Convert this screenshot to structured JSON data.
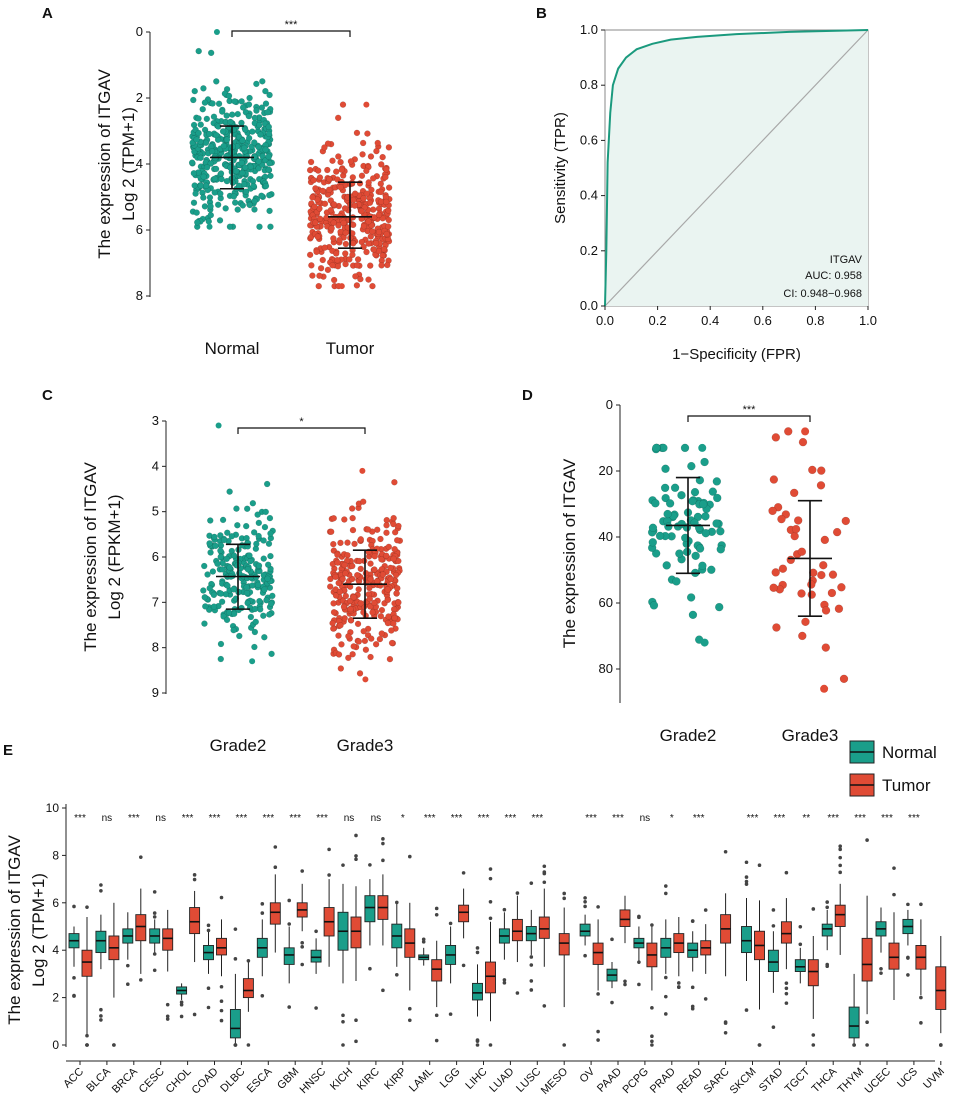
{
  "colors": {
    "normal": "#1a9e8a",
    "tumor": "#e04b35",
    "roc_line": "#1b9a7e",
    "roc_fill": "#eaf4f1",
    "diagonal": "#a8a8a8",
    "axis": "#222222"
  },
  "chart_data": [
    {
      "panel": "A",
      "type": "scatter",
      "ylabel": "The  expression of  ITGAV",
      "ylabel2": "Log 2 (TPM+1)",
      "categories": [
        "Normal",
        "Tumor"
      ],
      "ylim": [
        0,
        8
      ],
      "yticks": [
        "0",
        "2",
        "4",
        "6",
        "8"
      ],
      "significance": "***",
      "series": [
        {
          "name": "Normal",
          "mean": 3.8,
          "sd_low": 2.85,
          "sd_high": 4.75,
          "min": 0.0,
          "max": 5.9,
          "n": 420
        },
        {
          "name": "Tumor",
          "mean": 5.6,
          "sd_low": 4.55,
          "sd_high": 6.55,
          "min": 2.2,
          "max": 7.7,
          "n": 360
        }
      ]
    },
    {
      "panel": "B",
      "type": "line",
      "xlabel": "1−Specificity (FPR)",
      "ylabel": "Sensitivity (TPR)",
      "xlim": [
        0,
        1
      ],
      "ylim": [
        0,
        1
      ],
      "xticks": [
        "0.0",
        "0.2",
        "0.4",
        "0.6",
        "0.8",
        "1.0"
      ],
      "yticks": [
        "0.0",
        "0.2",
        "0.4",
        "0.6",
        "0.8",
        "1.0"
      ],
      "roc_fpr": [
        0,
        0.005,
        0.01,
        0.02,
        0.03,
        0.05,
        0.08,
        0.12,
        0.18,
        0.25,
        0.35,
        0.5,
        0.7,
        1.0
      ],
      "roc_tpr": [
        0,
        0.2,
        0.52,
        0.7,
        0.8,
        0.86,
        0.9,
        0.93,
        0.95,
        0.965,
        0.975,
        0.985,
        0.993,
        1.0
      ],
      "legend": {
        "gene": "ITGAV",
        "auc": "AUC: 0.958",
        "ci": "CI: 0.948−0.968"
      }
    },
    {
      "panel": "C",
      "type": "scatter",
      "ylabel": "The  expression of  ITGAV",
      "ylabel2": "Log 2 (FPKM+1)",
      "categories": [
        "Grade2",
        "Grade3"
      ],
      "ylim": [
        3,
        9
      ],
      "yticks": [
        "3",
        "4",
        "5",
        "6",
        "7",
        "8",
        "9"
      ],
      "significance": "*",
      "series": [
        {
          "name": "Grade2",
          "mean": 6.43,
          "sd_low": 5.72,
          "sd_high": 7.15,
          "min": 3.1,
          "max": 8.3,
          "n": 230
        },
        {
          "name": "Grade3",
          "mean": 6.6,
          "sd_low": 5.85,
          "sd_high": 7.35,
          "min": 4.1,
          "max": 8.7,
          "n": 300
        }
      ]
    },
    {
      "panel": "D",
      "type": "scatter",
      "ylabel": "The  expression of  ITGAV",
      "categories": [
        "Grade2",
        "Grade3"
      ],
      "ylim": [
        0,
        90
      ],
      "yticks": [
        "0",
        "20",
        "40",
        "60",
        "80"
      ],
      "significance": "***",
      "series": [
        {
          "name": "Grade2",
          "mean": 36.5,
          "sd_low": 22,
          "sd_high": 51,
          "min": 13,
          "max": 72,
          "n": 85
        },
        {
          "name": "Grade3",
          "mean": 46.5,
          "sd_low": 29,
          "sd_high": 64,
          "min": 8,
          "max": 86,
          "n": 45
        }
      ]
    },
    {
      "panel": "E",
      "type": "box",
      "ylabel": "The expression of ITGAV",
      "ylabel2": "Log 2 (TPM+1)",
      "ylim": [
        0,
        10
      ],
      "yticks": [
        "0",
        "2",
        "4",
        "6",
        "8",
        "10"
      ],
      "legend": [
        "Normal",
        "Tumor"
      ],
      "categories": [
        "ACC",
        "BLCA",
        "BRCA",
        "CESC",
        "CHOL",
        "COAD",
        "DLBC",
        "ESCA",
        "GBM",
        "HNSC",
        "KICH",
        "KIRC",
        "KIRP",
        "LAML",
        "LGG",
        "LIHC",
        "LUAD",
        "LUSC",
        "MESO",
        "OV",
        "PAAD",
        "PCPG",
        "PRAD",
        "READ",
        "SARC",
        "SKCM",
        "STAD",
        "TGCT",
        "THCA",
        "THYM",
        "UCEC",
        "UCS",
        "UVM"
      ],
      "significance": [
        "***",
        "ns",
        "***",
        "ns",
        "***",
        "***",
        "***",
        "***",
        "***",
        "***",
        "ns",
        "ns",
        "*",
        "***",
        "***",
        "***",
        "***",
        "***",
        "",
        "***",
        "***",
        "ns",
        "*",
        "***",
        "",
        "***",
        "***",
        "**",
        "***",
        "***",
        "***",
        "***",
        ""
      ],
      "normal_box": [
        [
          4.1,
          4.4,
          4.7,
          3.3,
          5.0
        ],
        [
          3.9,
          4.4,
          4.8,
          3.2,
          5.5
        ],
        [
          4.3,
          4.6,
          4.9,
          3.6,
          5.6
        ],
        [
          4.3,
          4.6,
          4.9,
          3.9,
          5.3
        ],
        [
          2.15,
          2.3,
          2.45,
          1.9,
          2.6
        ],
        [
          3.6,
          3.9,
          4.2,
          3.0,
          4.8
        ],
        [
          0.3,
          0.7,
          1.5,
          0.0,
          3.0
        ],
        [
          3.7,
          4.1,
          4.5,
          2.9,
          5.3
        ],
        [
          3.4,
          3.8,
          4.1,
          2.6,
          5.0
        ],
        [
          3.5,
          3.7,
          4.0,
          3.0,
          4.5
        ],
        [
          4.0,
          4.8,
          5.6,
          2.6,
          6.8
        ],
        [
          5.2,
          5.8,
          6.3,
          4.2,
          7.0
        ],
        [
          4.1,
          4.6,
          5.1,
          3.3,
          6.0
        ],
        [
          3.6,
          3.7,
          3.8,
          3.35,
          4.1
        ],
        [
          3.4,
          3.8,
          4.2,
          2.6,
          5.0
        ],
        [
          1.9,
          2.2,
          2.6,
          1.2,
          3.4
        ],
        [
          4.3,
          4.6,
          4.9,
          3.6,
          5.6
        ],
        [
          4.4,
          4.7,
          5.0,
          3.8,
          5.7
        ],
        null,
        [
          4.6,
          4.8,
          5.1,
          4.2,
          5.5
        ],
        [
          2.7,
          2.95,
          3.2,
          2.4,
          3.5
        ],
        [
          4.1,
          4.3,
          4.5,
          3.5,
          5.0
        ],
        [
          3.7,
          4.1,
          4.5,
          3.0,
          5.3
        ],
        [
          3.7,
          4.0,
          4.3,
          3.1,
          4.8
        ],
        null,
        [
          3.9,
          4.4,
          5.0,
          2.7,
          6.2
        ],
        [
          3.1,
          3.5,
          4.0,
          2.2,
          4.8
        ],
        [
          3.1,
          3.3,
          3.6,
          2.6,
          4.1
        ],
        [
          4.6,
          4.9,
          5.1,
          4.0,
          5.7
        ],
        [
          0.3,
          0.8,
          1.6,
          0.0,
          3.0
        ],
        [
          4.6,
          4.9,
          5.2,
          3.9,
          5.8
        ],
        [
          4.7,
          5.0,
          5.3,
          4.2,
          5.7
        ],
        null
      ],
      "tumor_box": [
        [
          2.9,
          3.5,
          4.0,
          0.4,
          5.4
        ],
        [
          3.6,
          4.1,
          4.6,
          2.0,
          6.0
        ],
        [
          4.4,
          5.0,
          5.5,
          3.0,
          6.6
        ],
        [
          4.0,
          4.5,
          4.9,
          3.1,
          5.7
        ],
        [
          4.7,
          5.2,
          5.8,
          3.5,
          6.5
        ],
        [
          3.8,
          4.1,
          4.5,
          2.9,
          5.3
        ],
        [
          2.0,
          2.3,
          2.8,
          1.4,
          3.5
        ],
        [
          5.1,
          5.6,
          6.0,
          3.9,
          7.2
        ],
        [
          5.4,
          5.7,
          6.0,
          4.8,
          6.8
        ],
        [
          4.6,
          5.2,
          5.8,
          3.3,
          7.0
        ],
        [
          4.1,
          4.8,
          5.4,
          2.7,
          6.7
        ],
        [
          5.3,
          5.8,
          6.3,
          4.2,
          7.2
        ],
        [
          3.7,
          4.3,
          4.9,
          2.3,
          6.0
        ],
        [
          2.7,
          3.2,
          3.6,
          1.6,
          4.4
        ],
        [
          5.2,
          5.6,
          5.9,
          4.5,
          6.6
        ],
        [
          2.2,
          2.9,
          3.5,
          1.0,
          5.2
        ],
        [
          4.4,
          4.8,
          5.3,
          3.5,
          6.3
        ],
        [
          4.5,
          4.9,
          5.4,
          3.3,
          6.6
        ],
        [
          3.8,
          4.3,
          4.7,
          1.6,
          5.8
        ],
        [
          3.4,
          3.9,
          4.3,
          2.3,
          5.3
        ],
        [
          5.0,
          5.3,
          5.7,
          4.3,
          6.3
        ],
        [
          3.3,
          3.8,
          4.3,
          2.3,
          5.0
        ],
        [
          3.9,
          4.3,
          4.7,
          2.9,
          5.4
        ],
        [
          3.8,
          4.1,
          4.4,
          3.0,
          5.1
        ],
        [
          4.3,
          4.9,
          5.5,
          2.9,
          6.4
        ],
        [
          3.6,
          4.2,
          4.8,
          1.5,
          6.1
        ],
        [
          4.3,
          4.7,
          5.2,
          3.2,
          6.2
        ],
        [
          2.5,
          3.1,
          3.6,
          1.1,
          4.6
        ],
        [
          5.0,
          5.5,
          5.9,
          3.8,
          6.8
        ],
        [
          2.7,
          3.4,
          4.5,
          1.3,
          6.3
        ],
        [
          3.2,
          3.7,
          4.3,
          1.9,
          5.6
        ],
        [
          3.2,
          3.7,
          4.2,
          2.1,
          5.3
        ],
        [
          1.5,
          2.3,
          3.3,
          0.5,
          4.6
        ]
      ]
    }
  ],
  "panel_labels": {
    "A": "A",
    "B": "B",
    "C": "C",
    "D": "D",
    "E": "E"
  }
}
